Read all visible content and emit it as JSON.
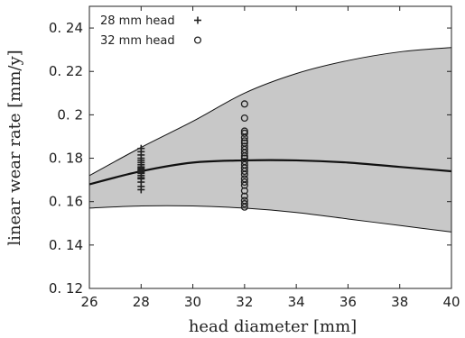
{
  "chart_data": {
    "type": "scatter",
    "title": "",
    "xlabel": "head diameter [mm]",
    "ylabel": "linear wear rate [mm/y]",
    "xlim": [
      26,
      40
    ],
    "ylim": [
      0.12,
      0.25
    ],
    "xticks": [
      26,
      28,
      30,
      32,
      34,
      36,
      38,
      40
    ],
    "yticks": [
      0.12,
      0.14,
      0.16,
      0.18,
      0.2,
      0.22,
      0.24
    ],
    "xtick_labels": [
      "26",
      "28",
      "30",
      "32",
      "34",
      "36",
      "38",
      "40"
    ],
    "ytick_labels": [
      "0. 12",
      "0. 14",
      "0. 16",
      "0. 18",
      "0. 2",
      "0. 22",
      "0. 24"
    ],
    "grid": false,
    "legend_position": "top-left",
    "band": {
      "x": [
        26,
        28,
        30,
        32,
        34,
        36,
        38,
        40
      ],
      "upper": [
        0.172,
        0.185,
        0.197,
        0.21,
        0.219,
        0.225,
        0.229,
        0.231
      ],
      "lower": [
        0.157,
        0.158,
        0.158,
        0.157,
        0.155,
        0.152,
        0.149,
        0.146
      ],
      "color": "#c8c8c8"
    },
    "fit_line": {
      "x": [
        26,
        28,
        30,
        32,
        34,
        36,
        38,
        40
      ],
      "y": [
        0.168,
        0.174,
        0.178,
        0.179,
        0.179,
        0.178,
        0.176,
        0.174
      ],
      "color": "#111111"
    },
    "series": [
      {
        "name": "28 mm head",
        "marker": "plus",
        "x": [
          28,
          28,
          28,
          28,
          28,
          28,
          28,
          28,
          28,
          28,
          28,
          28,
          28,
          28,
          28,
          28,
          28,
          28,
          28,
          28
        ],
        "y": [
          0.1655,
          0.167,
          0.169,
          0.1705,
          0.171,
          0.172,
          0.173,
          0.1735,
          0.174,
          0.1745,
          0.175,
          0.1755,
          0.176,
          0.177,
          0.178,
          0.179,
          0.18,
          0.1815,
          0.183,
          0.1845
        ]
      },
      {
        "name": "32 mm head",
        "marker": "circle",
        "x": [
          32,
          32,
          32,
          32,
          32,
          32,
          32,
          32,
          32,
          32,
          32,
          32,
          32,
          32,
          32,
          32,
          32,
          32,
          32,
          32,
          32,
          32,
          32,
          32,
          32
        ],
        "y": [
          0.1575,
          0.159,
          0.1605,
          0.1625,
          0.165,
          0.1675,
          0.169,
          0.1705,
          0.1725,
          0.174,
          0.1755,
          0.177,
          0.1785,
          0.18,
          0.181,
          0.1825,
          0.184,
          0.1855,
          0.187,
          0.188,
          0.1895,
          0.1915,
          0.1925,
          0.1985,
          0.205
        ]
      }
    ],
    "colors": {
      "axis": "#222222",
      "marker": "#222222"
    }
  }
}
